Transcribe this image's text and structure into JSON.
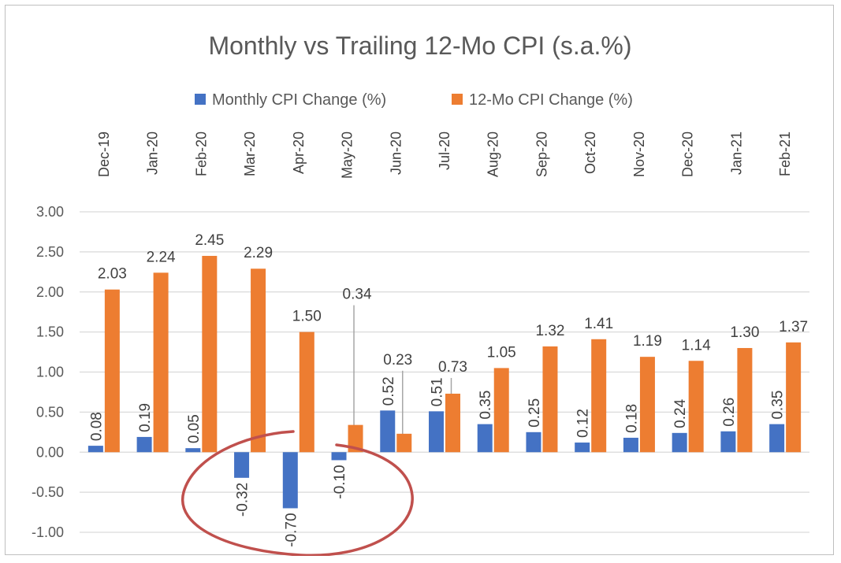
{
  "chart_data": {
    "type": "bar",
    "title": "Monthly vs Trailing 12-Mo CPI (s.a.%)",
    "categories": [
      "Dec-19",
      "Jan-20",
      "Feb-20",
      "Mar-20",
      "Apr-20",
      "May-20",
      "Jun-20",
      "Jul-20",
      "Aug-20",
      "Sep-20",
      "Oct-20",
      "Nov-20",
      "Dec-20",
      "Jan-21",
      "Feb-21"
    ],
    "series": [
      {
        "name": "Monthly CPI Change (%)",
        "color": "#4472c4",
        "values": [
          0.08,
          0.19,
          0.05,
          -0.32,
          -0.7,
          -0.1,
          0.52,
          0.51,
          0.35,
          0.25,
          0.12,
          0.18,
          0.24,
          0.26,
          0.35
        ],
        "labels": [
          "0.08",
          "0.19",
          "0.05",
          "-0.32",
          "-0.70",
          "-0.10",
          "0.52",
          "0.51",
          "0.35",
          "0.25",
          "0.12",
          "0.18",
          "0.24",
          "0.26",
          "0.35"
        ]
      },
      {
        "name": "12-Mo CPI Change (%)",
        "color": "#ed7d31",
        "values": [
          2.03,
          2.24,
          2.45,
          2.29,
          1.5,
          0.34,
          0.23,
          0.73,
          1.05,
          1.32,
          1.41,
          1.19,
          1.14,
          1.3,
          1.37
        ],
        "labels": [
          "2.03",
          "2.24",
          "2.45",
          "2.29",
          "1.50",
          "0.34",
          "0.23",
          "0.73",
          "1.05",
          "1.32",
          "1.41",
          "1.19",
          "1.14",
          "1.30",
          "1.37"
        ]
      }
    ],
    "yticks": [
      "3.00",
      "2.50",
      "2.00",
      "1.50",
      "1.00",
      "0.50",
      "0.00",
      "-0.50",
      "-1.00"
    ],
    "ylim": [
      -1.0,
      3.0
    ],
    "grid": true,
    "legend_position": "top",
    "annotation": {
      "shape": "hand-drawn circle around negative monthly values (Mar-20 to May-20)",
      "color": "#c0504d"
    }
  }
}
